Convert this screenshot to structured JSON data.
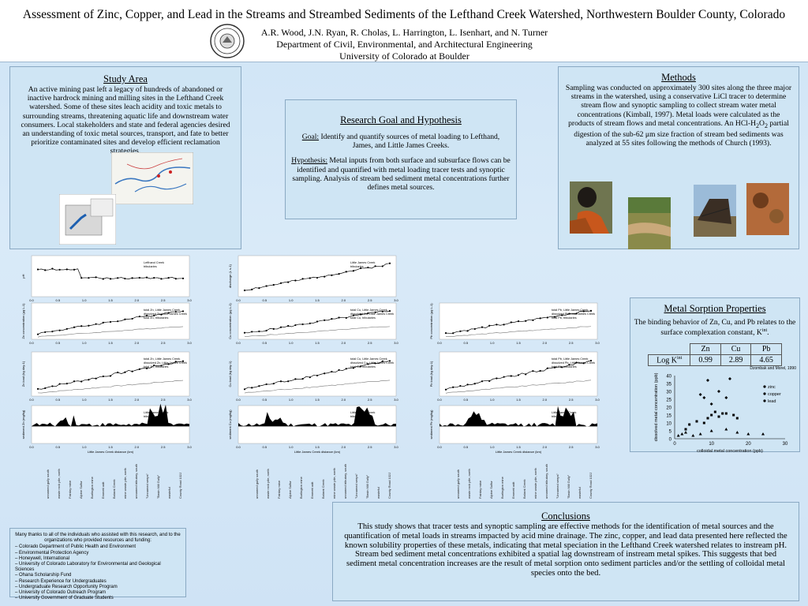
{
  "header": {
    "title": "Assessment of Zinc, Copper, and Lead in the Streams and Streambed Sediments of the Lefthand Creek Watershed, Northwestern Boulder County, Colorado",
    "authors": "A.R. Wood, J.N. Ryan, R. Cholas, L. Harrington, L. Isenhart, and N. Turner",
    "department": "Department of Civil, Environmental, and Architectural Engineering",
    "university": "University of Colorado at Boulder"
  },
  "study": {
    "heading": "Study Area",
    "text": "An active mining past left a legacy of hundreds of abandoned or inactive hardrock mining and milling sites in the Lefthand Creek watershed.  Some of these sites leach acidity and toxic metals to surrounding streams, threatening aquatic life and downstream water consumers.  Local stakeholders and state and federal agencies desired an understanding of toxic metal sources, transport, and fate to better prioritize contaminated sites and develop efficient reclamation strategies."
  },
  "goal": {
    "heading": "Research Goal and Hypothesis",
    "goal_label": "Goal:",
    "goal_text": " Identify and quantify sources of metal loading to Lefthand, James, and Little James Creeks.",
    "hyp_label": "Hypothesis:",
    "hyp_text": " Metal inputs from both surface and subsurface flows can be identified and quantified with metal loading tracer tests and synoptic sampling.  Analysis of stream bed sediment metal concentrations further defines metal sources."
  },
  "methods": {
    "heading": "Methods",
    "text_1": "Sampling was conducted on approximately 300 sites along the three major streams in the watershed, using a conservative LiCl tracer to determine stream flow and synoptic sampling to collect stream water metal concentrations (Kimball, 1997).  Metal loads were calculated as the products of stream flows and metal concentrations.  An HCl-H",
    "sub_1": "2",
    "text_2": "O",
    "sub_2": "2",
    "text_3": " partial digestion of the sub-62 μm size fraction of stream bed sediments  was analyzed at 55 sites following the methods of Church (1993)."
  },
  "sorption": {
    "heading": "Metal Sorption Properties",
    "text": "The binding behavior of Zn, Cu, and Pb relates to the surface complexation constant, K",
    "sup": "int",
    "text_end": ".",
    "table_header": [
      "",
      "Zn",
      "Cu",
      "Pb"
    ],
    "row_label": "Log K",
    "row_sup": "int",
    "row_values": [
      "0.99",
      "2.89",
      "4.65"
    ],
    "citation": "Dzombak and Morel, 1990"
  },
  "conclusions": {
    "heading": "Conclusions",
    "p1": "This study shows that tracer tests and synoptic sampling are effective methods for the identification of metal sources and the quantification of metal loads in streams impacted by acid mine drainage.  The zinc, copper, and lead data presented here reflected the known solubility properties of these metals, indicating that metal speciation in the Lefthand Creek watershed relates to instream pH.",
    "p2": "Stream bed sediment metal concentrations exhibited a spatial lag downstream of instream metal spikes.  This suggests that bed sediment metal concentration increases are the result of metal sorption onto sediment particles and/or the settling of colloidal metal species onto the bed."
  },
  "ack": {
    "intro": "Many thanks to all of the individuals who assisted with this research, and to the organizations who provided resources and funding:",
    "items": [
      "Colorado Department of Public Health and Environment",
      "Environmental Protection Agency",
      "Honeywell, International",
      "University of Colorado Laboratory for Environmental and Geological Sciences",
      "Ohana Scholarship Fund",
      "Research Experience for Undergraduates",
      "Undergraduate Research Opportunity Program",
      "University of Colorado Outreach Program",
      "University Government of Graduate Students"
    ]
  },
  "chart_data": [
    {
      "type": "scatter",
      "title": "",
      "xlabel": "",
      "ylabel": "",
      "xlim": [
        0,
        30
      ],
      "ylim": [
        0,
        40
      ],
      "series": [
        {
          "name": "zinc",
          "x": [
            7,
            8,
            9,
            10,
            12,
            14,
            15
          ],
          "y": [
            28,
            26,
            37,
            22,
            30,
            26,
            38
          ]
        },
        {
          "name": "copper",
          "x": [
            3,
            4,
            6,
            8,
            9,
            10,
            11,
            12,
            13,
            14,
            16,
            17
          ],
          "y": [
            6,
            9,
            11,
            10,
            13,
            15,
            17,
            14,
            16,
            16,
            15,
            13
          ]
        },
        {
          "name": "lead",
          "x": [
            1,
            2,
            3,
            5,
            7,
            10,
            14,
            17,
            20,
            24
          ],
          "y": [
            2,
            3,
            4,
            2,
            3,
            5,
            6,
            4,
            3,
            3
          ]
        }
      ]
    },
    {
      "type": "line",
      "ylabel": "pH",
      "series": [
        {
          "name": "Lefthand Creek"
        },
        {
          "name": "tributaries"
        }
      ]
    },
    {
      "type": "line",
      "ylabel": "discharge (L s-1)",
      "series": [
        {
          "name": "Little James Creek"
        },
        {
          "name": "tributaries"
        }
      ]
    },
    {
      "type": "line",
      "ylabel": "Zn concentration (μg L-1)",
      "series": [
        {
          "name": "total Zn, Little James Creek"
        },
        {
          "name": "dissolved Zn, Little James Creek"
        },
        {
          "name": "total Zn, tributaries"
        }
      ]
    },
    {
      "type": "line",
      "ylabel": "Cu concentration (μg L-1)",
      "series": [
        {
          "name": "total Cu, Little James Creek"
        },
        {
          "name": "dissolved Cu, Little James Creek"
        },
        {
          "name": "total Cu, tributaries"
        }
      ]
    },
    {
      "type": "line",
      "ylabel": "Pb concentration (μg L-1)",
      "series": [
        {
          "name": "total Pb, Little James Creek"
        },
        {
          "name": "dissolved Pb, Little James Creek"
        },
        {
          "name": "total Pb, tributaries"
        }
      ]
    },
    {
      "type": "line",
      "ylabel": "Zn load (kg day-1)"
    },
    {
      "type": "line",
      "ylabel": "Cu load (kg day-1)"
    },
    {
      "type": "line",
      "ylabel": "Pb load (kg day-1)"
    },
    {
      "type": "area",
      "ylabel": "sediment Zn (mg/kg)",
      "xlabel": "Little James Creek distance (km)"
    },
    {
      "type": "area",
      "ylabel": "sediment Cu (mg/kg)",
      "xlabel": "Little James Creek distance (km)"
    },
    {
      "type": "area",
      "ylabel": "sediment Pb (mg/kg)",
      "xlabel": "Little James Creek distance (km)"
    }
  ],
  "scatter_text": {
    "xlabel": "colloidal metal concentration (ppb)",
    "ylabel": "dissolved metal concentration (ppb)",
    "legend": [
      "zinc",
      "copper",
      "lead"
    ],
    "xticks": [
      "0",
      "10",
      "20",
      "30"
    ],
    "yticks": [
      "0",
      "5",
      "10",
      "15",
      "20",
      "25",
      "30",
      "35",
      "40"
    ]
  },
  "site_labels": [
    "unnamed gully south",
    "waste rock pile, north",
    "Fairday mine",
    "Alpine Sulfur",
    "Burlington mine",
    "Emmett adit",
    "Balarat Creek",
    "mine waste pile, north",
    "unnamed tributary, south",
    "\"Unnamed seeps\"",
    "\"Basin Mill Gully\"",
    "wasteful",
    "County Road 102J"
  ],
  "legends": {
    "ph": [
      "Lefthand Creek",
      "tributaries"
    ],
    "discharge": [
      "Little James Creek",
      "tributaries"
    ],
    "zn": [
      "total Zn, Little James Creek",
      "dissolved Zn, Little James Creek",
      "total Zn, tributaries"
    ],
    "cu": [
      "total Cu, Little James Creek",
      "dissolved Cu, Little James Creek",
      "total Cu, tributaries"
    ],
    "pb": [
      "total Pb, Little James Creek",
      "dissolved Pb, Little James Creek",
      "total Pb, tributaries"
    ],
    "sed": [
      "Little James Creek",
      "tributaries"
    ]
  },
  "axis_text": {
    "distance": "Little James Creek distance (km)",
    "xticks": [
      "0.0",
      "0.5",
      "1.0",
      "1.5",
      "2.0",
      "2.5",
      "3.0"
    ]
  },
  "colors": {
    "panel": "#cfe5f4",
    "border": "#8aa9c3",
    "background": "#d6e8f7"
  }
}
